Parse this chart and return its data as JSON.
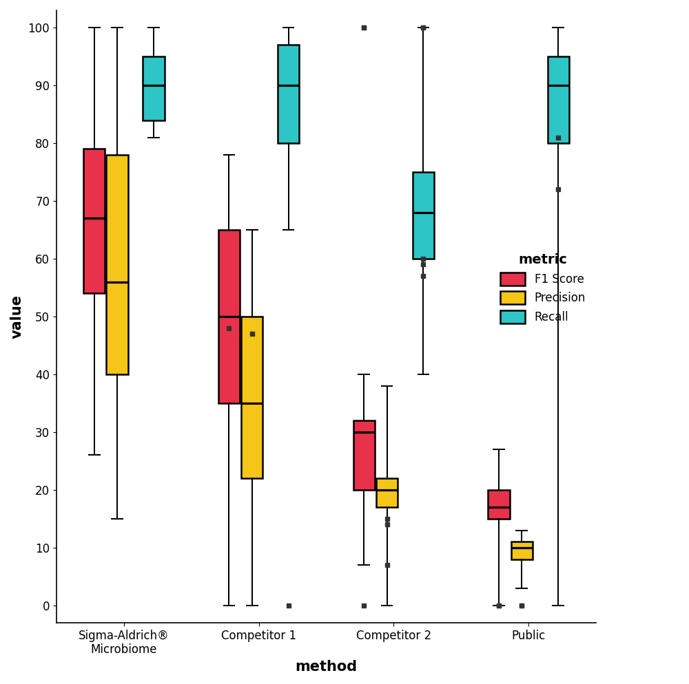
{
  "title": "",
  "xlabel": "method",
  "ylabel": "value",
  "xlabels": [
    "Sigma-Aldrich®\nMicrobiome",
    "Competitor 1",
    "Competitor 2",
    "Public"
  ],
  "metrics": [
    "F1 Score",
    "Precision",
    "Recall"
  ],
  "colors": {
    "F1 Score": "#E8314A",
    "Precision": "#F5C518",
    "Recall": "#2DC5C5"
  },
  "box_data": {
    "Sigma-Aldrich®\nMicrobiome": {
      "F1 Score": {
        "whislo": 26,
        "q1": 54,
        "med": 67,
        "q3": 79,
        "whishi": 100,
        "fliers": []
      },
      "Precision": {
        "whislo": 15,
        "q1": 40,
        "med": 56,
        "q3": 78,
        "whishi": 100,
        "fliers": []
      },
      "Recall": {
        "whislo": 81,
        "q1": 84,
        "med": 90,
        "q3": 95,
        "whishi": 100,
        "fliers": []
      }
    },
    "Competitor 1": {
      "F1 Score": {
        "whislo": 0,
        "q1": 35,
        "med": 50,
        "q3": 65,
        "whishi": 78,
        "fliers": [
          48
        ]
      },
      "Precision": {
        "whislo": 0,
        "q1": 22,
        "med": 35,
        "q3": 50,
        "whishi": 65,
        "fliers": [
          47
        ]
      },
      "Recall": {
        "whislo": 65,
        "q1": 80,
        "med": 90,
        "q3": 97,
        "whishi": 100,
        "fliers": [
          0
        ]
      }
    },
    "Competitor 2": {
      "F1 Score": {
        "whislo": 7,
        "q1": 20,
        "med": 30,
        "q3": 32,
        "whishi": 40,
        "fliers": [
          0,
          100,
          100
        ]
      },
      "Precision": {
        "whislo": 0,
        "q1": 17,
        "med": 20,
        "q3": 22,
        "whishi": 38,
        "fliers": [
          7,
          14,
          15
        ]
      },
      "Recall": {
        "whislo": 40,
        "q1": 60,
        "med": 68,
        "q3": 75,
        "whishi": 100,
        "fliers": [
          57,
          59,
          60,
          100,
          100
        ]
      }
    },
    "Public": {
      "F1 Score": {
        "whislo": 0,
        "q1": 15,
        "med": 17,
        "q3": 20,
        "whishi": 27,
        "fliers": [
          0,
          0
        ]
      },
      "Precision": {
        "whislo": 3,
        "q1": 8,
        "med": 10,
        "q3": 11,
        "whishi": 13,
        "fliers": [
          0,
          0
        ]
      },
      "Recall": {
        "whislo": 0,
        "q1": 80,
        "med": 90,
        "q3": 95,
        "whishi": 100,
        "fliers": [
          72,
          81
        ]
      }
    }
  },
  "ylim": [
    -3,
    103
  ],
  "legend_title": "metric",
  "offsets": [
    -0.22,
    -0.05,
    0.22
  ],
  "box_width": 0.16,
  "linewidth": 1.8,
  "background_color": "#ffffff",
  "flier_size": 4,
  "flier_color": "#333333"
}
